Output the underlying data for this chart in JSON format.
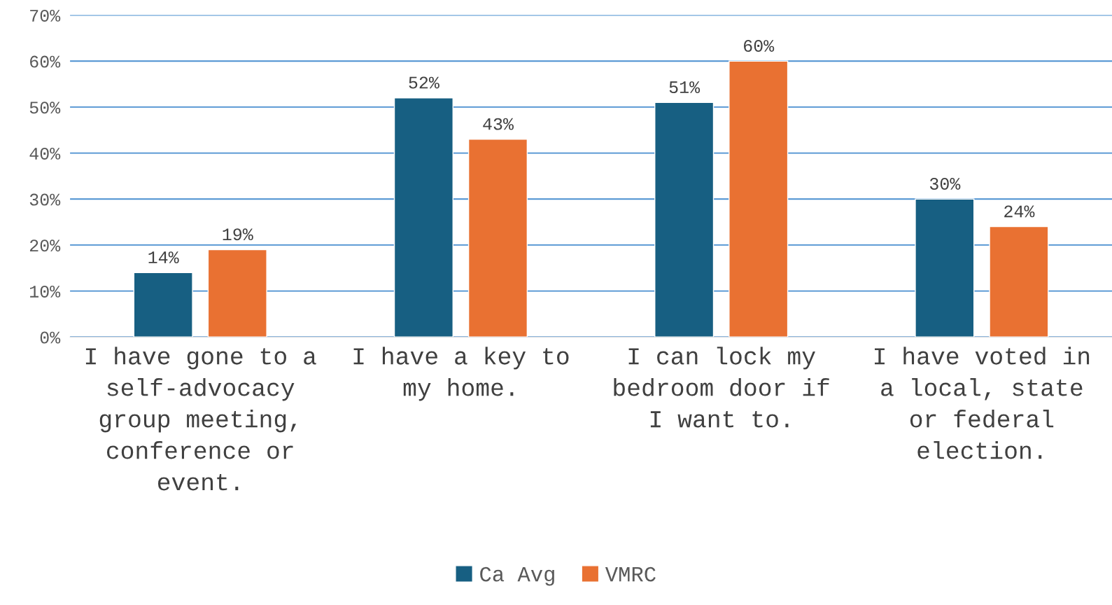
{
  "chart_data": {
    "type": "bar",
    "categories": [
      "I have gone to a self-advocacy group meeting, conference or event.",
      "I have a key to my home.",
      "I can lock my bedroom door if I want to.",
      "I have voted in a local, state or federal election."
    ],
    "series": [
      {
        "name": "Ca Avg",
        "color": "#175f82",
        "values": [
          14,
          52,
          51,
          30
        ],
        "value_labels": [
          "14%",
          "52%",
          "51%",
          "30%"
        ]
      },
      {
        "name": "VMRC",
        "color": "#e97132",
        "values": [
          19,
          43,
          60,
          24
        ],
        "value_labels": [
          "19%",
          "43%",
          "60%",
          "24%"
        ]
      }
    ],
    "ylim": [
      0,
      70
    ],
    "yticks": [
      {
        "value": 0,
        "label": "0%"
      },
      {
        "value": 10,
        "label": "10%"
      },
      {
        "value": 20,
        "label": "20%"
      },
      {
        "value": 30,
        "label": "30%"
      },
      {
        "value": 40,
        "label": "40%"
      },
      {
        "value": 50,
        "label": "50%"
      },
      {
        "value": 60,
        "label": "60%"
      },
      {
        "value": 70,
        "label": "70%"
      }
    ],
    "grid": "y",
    "legend": "bottom"
  }
}
